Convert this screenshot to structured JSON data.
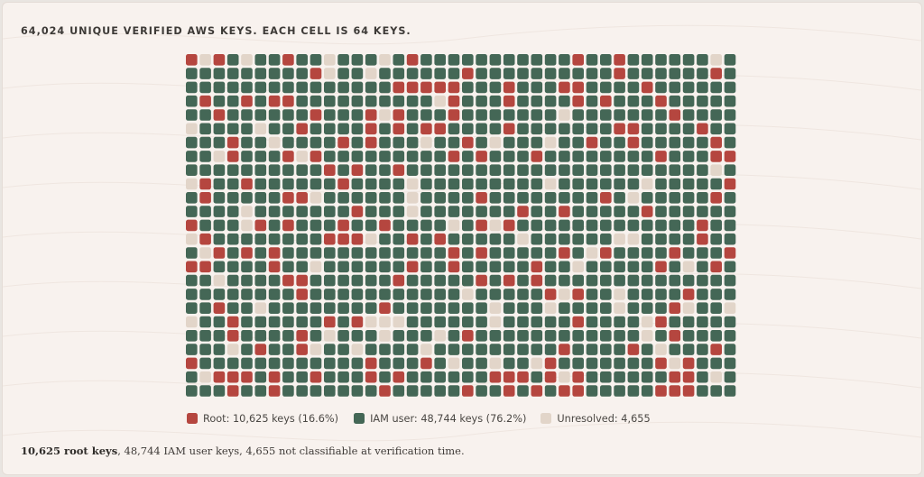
{
  "header": {
    "title": "64,024 UNIQUE VERIFIED AWS KEYS. EACH CELL IS 64 KEYS."
  },
  "colors": {
    "root": "#b5463f",
    "iam_user": "#446756",
    "unresolved": "#e2d5c9",
    "background": "#f8f2ee"
  },
  "legend": {
    "root_label": "Root: 10,625 keys (16.6%)",
    "iam_label": "IAM user: 48,744 keys (76.2%)",
    "unresolved_label": "Unresolved: 4,655"
  },
  "footnote": {
    "strong": "10,625 root keys",
    "rest": ", 48,744 IAM user keys, 4,655 not classifiable at verification time."
  },
  "chart_data": {
    "type": "waffle",
    "title": "64,024 UNIQUE VERIFIED AWS KEYS. EACH CELL IS 64 KEYS.",
    "keys_per_cell": 64,
    "total_keys": 64024,
    "columns": 40,
    "rows": 25,
    "categories": [
      "Root",
      "IAM user",
      "Unresolved"
    ],
    "values": [
      10625,
      48744,
      4655
    ],
    "percentages": [
      16.6,
      76.2,
      null
    ],
    "cell_counts": [
      166,
      761,
      73
    ],
    "colors": [
      "#b5463f",
      "#446756",
      "#e2d5c9"
    ]
  }
}
